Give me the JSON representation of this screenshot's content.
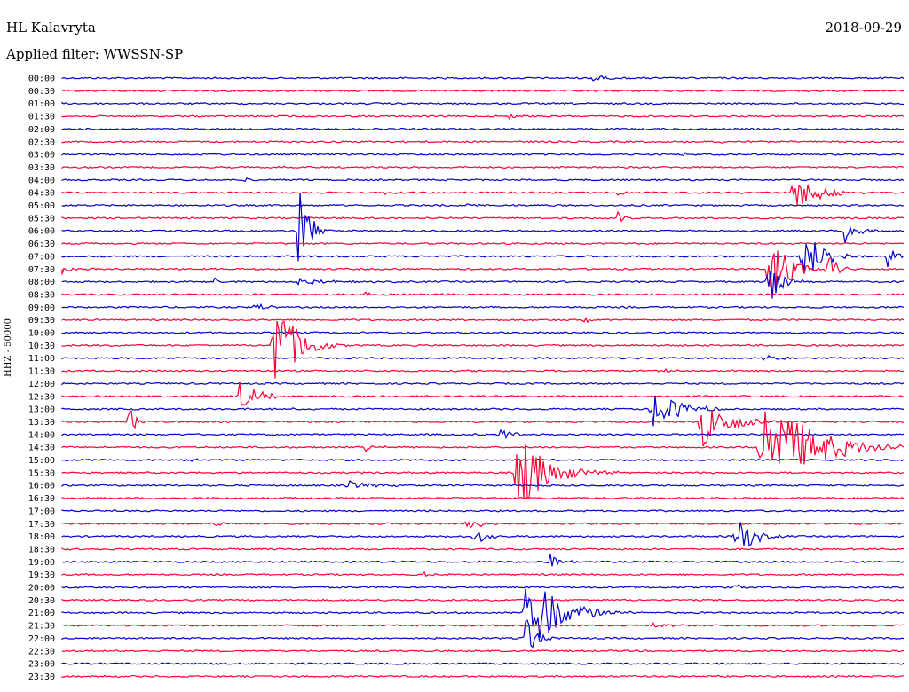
{
  "header": {
    "station": "HL Kalavryta",
    "date": "2018-09-29",
    "filter": "Applied filter: WWSSN-SP"
  },
  "chart_data": {
    "type": "line",
    "ylabel": "HHZ - 50000",
    "colors": [
      "#0000cc",
      "#ff0033"
    ],
    "rows": [
      {
        "time": "00:00",
        "events": [
          {
            "x": 0.63,
            "amp": 6,
            "w": 25
          }
        ]
      },
      {
        "time": "00:30",
        "events": []
      },
      {
        "time": "01:00",
        "events": []
      },
      {
        "time": "01:30",
        "events": [
          {
            "x": 0.53,
            "amp": 4,
            "w": 25
          }
        ]
      },
      {
        "time": "02:00",
        "events": []
      },
      {
        "time": "02:30",
        "events": [
          {
            "x": 0.78,
            "amp": 3,
            "w": 15
          }
        ]
      },
      {
        "time": "03:00",
        "events": [
          {
            "x": 0.74,
            "amp": 5,
            "w": 10
          }
        ]
      },
      {
        "time": "03:30",
        "events": [
          {
            "x": 0.26,
            "amp": 3,
            "w": 10
          }
        ]
      },
      {
        "time": "04:00",
        "events": [
          {
            "x": 0.22,
            "amp": 4,
            "w": 8
          }
        ]
      },
      {
        "time": "04:30",
        "events": [
          {
            "x": 0.87,
            "amp": 26,
            "w": 50
          },
          {
            "x": 0.66,
            "amp": 4,
            "w": 25
          },
          {
            "x": 0.38,
            "amp": 3,
            "w": 20
          }
        ]
      },
      {
        "time": "05:00",
        "events": [
          {
            "x": 0.48,
            "amp": 3,
            "w": 15
          }
        ]
      },
      {
        "time": "05:30",
        "events": [
          {
            "x": 0.66,
            "amp": 10,
            "w": 10
          },
          {
            "x": 0.46,
            "amp": 4,
            "w": 8
          }
        ]
      },
      {
        "time": "06:00",
        "events": [
          {
            "x": 0.28,
            "amp": 55,
            "w": 25
          },
          {
            "x": 0.93,
            "amp": 14,
            "w": 30
          }
        ]
      },
      {
        "time": "06:30",
        "events": []
      },
      {
        "time": "07:00",
        "events": [
          {
            "x": 0.88,
            "amp": 28,
            "w": 55
          },
          {
            "x": 0.98,
            "amp": 12,
            "w": 30
          }
        ]
      },
      {
        "time": "07:30",
        "events": [
          {
            "x": 0.0,
            "amp": 6,
            "w": 18
          },
          {
            "x": 0.84,
            "amp": 45,
            "w": 40
          },
          {
            "x": 0.91,
            "amp": 20,
            "w": 20
          }
        ]
      },
      {
        "time": "08:00",
        "events": [
          {
            "x": 0.18,
            "amp": 6,
            "w": 10
          },
          {
            "x": 0.28,
            "amp": 4,
            "w": 60
          },
          {
            "x": 0.84,
            "amp": 40,
            "w": 25
          }
        ]
      },
      {
        "time": "08:30",
        "events": [
          {
            "x": 0.36,
            "amp": 4,
            "w": 8
          },
          {
            "x": 0.45,
            "amp": 4,
            "w": 8
          }
        ]
      },
      {
        "time": "09:00",
        "events": [
          {
            "x": 0.23,
            "amp": 6,
            "w": 25
          }
        ]
      },
      {
        "time": "09:30",
        "events": [
          {
            "x": 0.62,
            "amp": 4,
            "w": 20
          }
        ]
      },
      {
        "time": "10:00",
        "events": []
      },
      {
        "time": "10:30",
        "events": [
          {
            "x": 0.25,
            "amp": 65,
            "w": 50
          }
        ]
      },
      {
        "time": "11:00",
        "events": [
          {
            "x": 0.83,
            "amp": 5,
            "w": 30
          }
        ]
      },
      {
        "time": "11:30",
        "events": [
          {
            "x": 0.72,
            "amp": 4,
            "w": 12
          }
        ]
      },
      {
        "time": "12:00",
        "events": []
      },
      {
        "time": "12:30",
        "events": [
          {
            "x": 0.21,
            "amp": 18,
            "w": 40
          },
          {
            "x": 0.34,
            "amp": 3,
            "w": 25
          }
        ]
      },
      {
        "time": "13:00",
        "events": [
          {
            "x": 0.7,
            "amp": 25,
            "w": 60
          },
          {
            "x": 0.26,
            "amp": 6,
            "w": 20
          }
        ]
      },
      {
        "time": "13:30",
        "events": [
          {
            "x": 0.08,
            "amp": 18,
            "w": 15
          },
          {
            "x": 0.76,
            "amp": 30,
            "w": 65
          }
        ]
      },
      {
        "time": "14:00",
        "events": [
          {
            "x": 0.52,
            "amp": 8,
            "w": 30
          }
        ]
      },
      {
        "time": "14:30",
        "events": [
          {
            "x": 0.83,
            "amp": 65,
            "w": 110
          },
          {
            "x": 0.36,
            "amp": 4,
            "w": 30
          }
        ]
      },
      {
        "time": "15:00",
        "events": [
          {
            "x": 0.15,
            "amp": 6,
            "w": 10
          }
        ]
      },
      {
        "time": "15:30",
        "events": [
          {
            "x": 0.54,
            "amp": 45,
            "w": 70
          }
        ]
      },
      {
        "time": "16:00",
        "events": [
          {
            "x": 0.34,
            "amp": 5,
            "w": 50
          },
          {
            "x": 0.48,
            "amp": 4,
            "w": 6
          }
        ]
      },
      {
        "time": "16:30",
        "events": []
      },
      {
        "time": "17:00",
        "events": []
      },
      {
        "time": "17:30",
        "events": [
          {
            "x": 0.48,
            "amp": 9,
            "w": 35
          },
          {
            "x": 0.18,
            "amp": 4,
            "w": 25
          }
        ]
      },
      {
        "time": "18:00",
        "events": [
          {
            "x": 0.49,
            "amp": 12,
            "w": 25
          },
          {
            "x": 0.8,
            "amp": 28,
            "w": 35
          }
        ]
      },
      {
        "time": "18:30",
        "events": []
      },
      {
        "time": "19:00",
        "events": [
          {
            "x": 0.58,
            "amp": 10,
            "w": 20
          }
        ]
      },
      {
        "time": "19:30",
        "events": [
          {
            "x": 0.43,
            "amp": 3,
            "w": 30
          }
        ]
      },
      {
        "time": "20:00",
        "events": [
          {
            "x": 0.8,
            "amp": 4,
            "w": 25
          }
        ]
      },
      {
        "time": "20:30",
        "events": []
      },
      {
        "time": "21:00",
        "events": [
          {
            "x": 0.55,
            "amp": 55,
            "w": 70
          }
        ]
      },
      {
        "time": "21:30",
        "events": [
          {
            "x": 0.7,
            "amp": 4,
            "w": 30
          }
        ]
      },
      {
        "time": "22:00",
        "events": [
          {
            "x": 0.55,
            "amp": 35,
            "w": 20
          }
        ]
      },
      {
        "time": "22:30",
        "events": []
      },
      {
        "time": "23:00",
        "events": []
      },
      {
        "time": "23:30",
        "events": []
      }
    ]
  }
}
